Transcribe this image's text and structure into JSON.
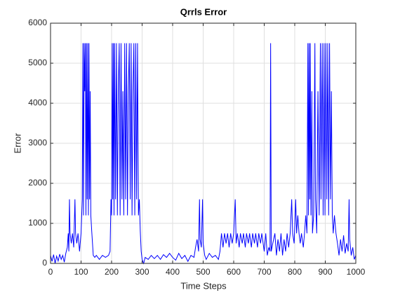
{
  "chart_data": {
    "type": "line",
    "title": "Qrrls Error",
    "xlabel": "Time Steps",
    "ylabel": "Error",
    "color": "#0000ff",
    "grid": true,
    "xlim": [
      0,
      1000
    ],
    "xticks": [
      0,
      100,
      200,
      300,
      400,
      500,
      600,
      700,
      800,
      900,
      1000
    ],
    "ylim": [
      0,
      6000
    ],
    "yticks": [
      0,
      1000,
      2000,
      3000,
      4000,
      5000,
      6000
    ],
    "x": [
      0,
      5,
      10,
      15,
      20,
      25,
      30,
      35,
      40,
      45,
      50,
      55,
      58,
      60,
      62,
      64,
      68,
      72,
      76,
      80,
      82,
      86,
      90,
      95,
      100,
      104,
      106,
      108,
      110,
      112,
      114,
      116,
      118,
      120,
      122,
      124,
      126,
      128,
      130,
      132,
      135,
      140,
      145,
      150,
      160,
      170,
      180,
      190,
      195,
      198,
      200,
      202,
      204,
      206,
      208,
      210,
      213,
      216,
      219,
      222,
      225,
      228,
      231,
      234,
      237,
      240,
      243,
      246,
      249,
      252,
      255,
      258,
      261,
      264,
      267,
      270,
      273,
      276,
      279,
      282,
      285,
      288,
      291,
      294,
      297,
      300,
      305,
      310,
      320,
      330,
      340,
      350,
      360,
      370,
      380,
      390,
      400,
      410,
      420,
      430,
      440,
      450,
      460,
      470,
      475,
      480,
      485,
      488,
      490,
      494,
      498,
      500,
      505,
      510,
      520,
      530,
      540,
      550,
      555,
      560,
      565,
      570,
      575,
      580,
      585,
      590,
      595,
      600,
      605,
      608,
      612,
      618,
      622,
      628,
      632,
      638,
      642,
      648,
      652,
      658,
      662,
      668,
      672,
      678,
      682,
      688,
      692,
      700,
      705,
      710,
      715,
      719,
      721,
      723,
      728,
      735,
      740,
      745,
      750,
      755,
      760,
      765,
      770,
      775,
      780,
      785,
      790,
      793,
      798,
      803,
      806,
      810,
      814,
      818,
      822,
      828,
      832,
      836,
      840,
      843,
      845,
      847,
      849,
      851,
      853,
      856,
      858,
      862,
      866,
      868,
      872,
      876,
      880,
      884,
      886,
      890,
      893,
      896,
      899,
      902,
      905,
      908,
      911,
      914,
      917,
      920,
      923,
      926,
      930,
      935,
      940,
      945,
      950,
      955,
      960,
      965,
      970,
      975,
      978,
      980,
      985,
      990,
      995,
      1000
    ],
    "values": [
      200,
      50,
      220,
      0,
      180,
      60,
      230,
      100,
      200,
      30,
      250,
      400,
      750,
      300,
      1600,
      750,
      500,
      750,
      400,
      1600,
      750,
      500,
      750,
      300,
      750,
      1600,
      5500,
      1200,
      5500,
      4300,
      5500,
      1200,
      5500,
      1600,
      5500,
      1200,
      5500,
      1600,
      4300,
      1200,
      800,
      200,
      150,
      200,
      100,
      200,
      150,
      200,
      300,
      1600,
      1200,
      5500,
      1600,
      5500,
      1200,
      5500,
      1600,
      5500,
      1200,
      4300,
      5500,
      1200,
      5500,
      1600,
      4300,
      1200,
      5500,
      1600,
      5500,
      1200,
      4300,
      5500,
      1600,
      5500,
      1200,
      4300,
      5500,
      1200,
      5500,
      1600,
      5500,
      1200,
      1600,
      800,
      300,
      100,
      0,
      150,
      100,
      200,
      120,
      200,
      100,
      220,
      150,
      250,
      150,
      80,
      250,
      120,
      200,
      50,
      200,
      150,
      400,
      600,
      300,
      1600,
      600,
      400,
      1600,
      500,
      200,
      100,
      250,
      150,
      200,
      100,
      300,
      750,
      400,
      750,
      500,
      750,
      400,
      750,
      500,
      750,
      1600,
      500,
      750,
      400,
      750,
      500,
      750,
      400,
      750,
      500,
      750,
      400,
      750,
      500,
      750,
      400,
      750,
      500,
      750,
      300,
      750,
      200,
      400,
      300,
      5500,
      300,
      500,
      750,
      200,
      600,
      300,
      750,
      200,
      600,
      300,
      750,
      400,
      750,
      1600,
      750,
      500,
      1600,
      750,
      1200,
      750,
      500,
      750,
      400,
      750,
      1200,
      750,
      5500,
      1200,
      5500,
      1600,
      5500,
      1200,
      4300,
      750,
      1200,
      5500,
      1600,
      750,
      4300,
      1200,
      5500,
      1600,
      5500,
      1200,
      5500,
      1200,
      5500,
      1600,
      5500,
      1200,
      5500,
      1600,
      4300,
      1200,
      750,
      1200,
      750,
      500,
      200,
      600,
      300,
      700,
      250,
      500,
      300,
      1600,
      600,
      200,
      400,
      100,
      200
    ]
  }
}
